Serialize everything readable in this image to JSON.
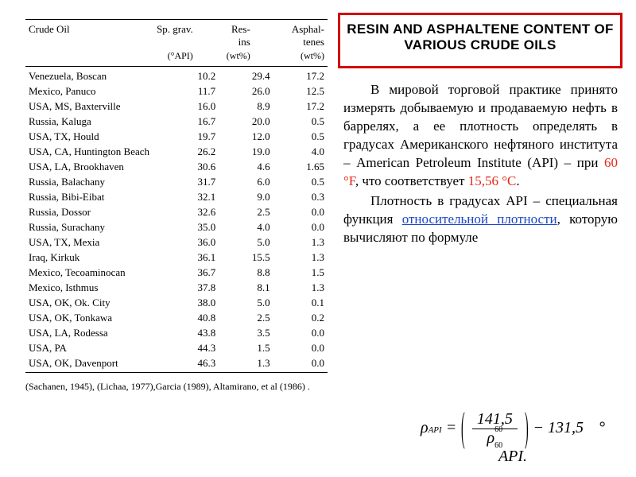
{
  "table": {
    "columns": [
      "Crude Oil",
      "Sp. grav.",
      "Res-\nins",
      "Asphal-\ntenes"
    ],
    "units": [
      "",
      "(°API)",
      "(wt%)",
      "(wt%)"
    ],
    "col_widths": [
      "46%",
      "18%",
      "18%",
      "18%"
    ],
    "text_color": "#000000",
    "rule_color": "#000000",
    "font_family": "Times New Roman",
    "header_fontsize": 13,
    "data_fontsize": 13,
    "rows": [
      [
        "Venezuela, Boscan",
        "10.2",
        "29.4",
        "17.2"
      ],
      [
        "Mexico, Panuco",
        "11.7",
        "26.0",
        "12.5"
      ],
      [
        "USA, MS, Baxterville",
        "16.0",
        "8.9",
        "17.2"
      ],
      [
        "Russia, Kaluga",
        "16.7",
        "20.0",
        "0.5"
      ],
      [
        "USA, TX, Hould",
        "19.7",
        "12.0",
        "0.5"
      ],
      [
        "USA, CA, Huntington Beach",
        "26.2",
        "19.0",
        "4.0"
      ],
      [
        "USA, LA, Brookhaven",
        "30.6",
        "4.6",
        "1.65"
      ],
      [
        "Russia, Balachany",
        "31.7",
        "6.0",
        "0.5"
      ],
      [
        "Russia, Bibi-Eibat",
        "32.1",
        "9.0",
        "0.3"
      ],
      [
        "Russia, Dossor",
        "32.6",
        "2.5",
        "0.0"
      ],
      [
        "Russia, Surachany",
        "35.0",
        "4.0",
        "0.0"
      ],
      [
        "USA, TX, Mexia",
        "36.0",
        "5.0",
        "1.3"
      ],
      [
        "Iraq, Kirkuk",
        "36.1",
        "15.5",
        "1.3"
      ],
      [
        "Mexico, Tecoaminocan",
        "36.7",
        "8.8",
        "1.5"
      ],
      [
        "Mexico, Isthmus",
        "37.8",
        "8.1",
        "1.3"
      ],
      [
        "USA, OK, Ok. City",
        "38.0",
        "5.0",
        "0.1"
      ],
      [
        "USA, OK, Tonkawa",
        "40.8",
        "2.5",
        "0.2"
      ],
      [
        "USA, LA, Rodessa",
        "43.8",
        "3.5",
        "0.0"
      ],
      [
        "USA, PA",
        "44.3",
        "1.5",
        "0.0"
      ],
      [
        "USA, OK, Davenport",
        "46.3",
        "1.3",
        "0.0"
      ]
    ],
    "source": "(Sachanen, 1945), (Lichaa, 1977),Garcia (1989), Altamirano, et al (1986) ."
  },
  "title_box": {
    "line1": "RESIN AND ASPHALTENE CONTENT OF",
    "line2": "VARIOUS CRUDE OILS",
    "border_color": "#d40000",
    "background": "#ffffff",
    "font_family": "Arial",
    "font_weight": "bold",
    "fontsize": 17
  },
  "body_text": {
    "fontsize": 17,
    "color": "#000000",
    "red_color": "#e02a18",
    "link_color": "#1946c6",
    "p1_parts": {
      "t1": "В мировой торговой практике принято измерять добываемую и продаваемую нефть в баррелях, а ее плотность определять в градусах Американского нефтяного института – American Petroleum Institute (API) – при ",
      "r1": "60 °F",
      "t2": ", что соответствует ",
      "r2": "15,56 °С",
      "t3": "."
    },
    "p2_parts": {
      "t1": "Плотность в градусах API – специальная функция ",
      "l1": "относительной плотности",
      "t2": ", которую вычисляют по формуле"
    }
  },
  "formula": {
    "numerator": "141,5",
    "minus": "131,5",
    "unit": "° API.",
    "rho_subscript": "API",
    "den_top": "60",
    "den_bot": "60",
    "color": "#000000",
    "fontsize": 20
  }
}
